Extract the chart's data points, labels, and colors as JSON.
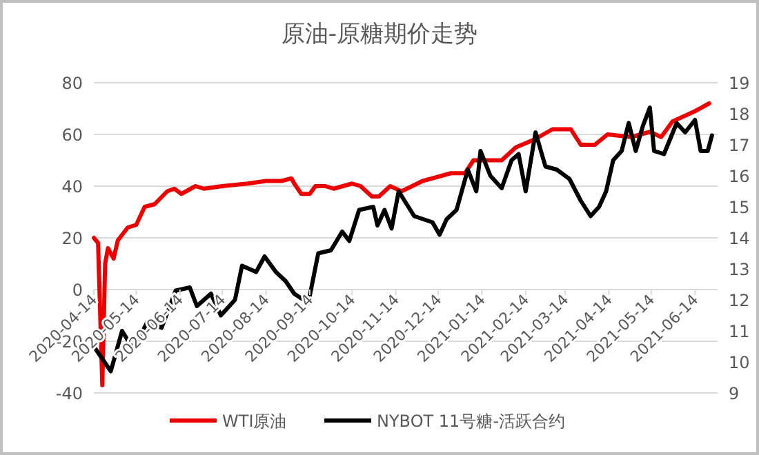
{
  "chart_data": {
    "type": "line",
    "title": "原油-原糖期价走势",
    "x": [
      "2020-04-14",
      "2020-04-17",
      "2020-04-20",
      "2020-04-22",
      "2020-04-24",
      "2020-04-28",
      "2020-05-01",
      "2020-05-08",
      "2020-05-14",
      "2020-05-20",
      "2020-05-27",
      "2020-06-05",
      "2020-06-10",
      "2020-06-15",
      "2020-06-25",
      "2020-07-01",
      "2020-07-14",
      "2020-08-01",
      "2020-08-14",
      "2020-08-25",
      "2020-09-01",
      "2020-09-03",
      "2020-09-08",
      "2020-09-14",
      "2020-09-18",
      "2020-09-25",
      "2020-10-01",
      "2020-10-14",
      "2020-10-20",
      "2020-10-28",
      "2020-11-02",
      "2020-11-10",
      "2020-11-18",
      "2020-12-03",
      "2020-12-23",
      "2021-01-02",
      "2021-01-08",
      "2021-01-28",
      "2021-02-07",
      "2021-02-20",
      "2021-03-05",
      "2021-03-18",
      "2021-03-25",
      "2021-04-04",
      "2021-04-13",
      "2021-04-30",
      "2021-05-13",
      "2021-05-21",
      "2021-05-29",
      "2021-06-14",
      "2021-06-24"
    ],
    "series": [
      {
        "name": "WTI原油",
        "color": "#ee0000",
        "values": [
          20,
          18,
          -37,
          10,
          16,
          12,
          19,
          24,
          25,
          32,
          33,
          38,
          39,
          37,
          40,
          39,
          40,
          41,
          42,
          42,
          43,
          41,
          37,
          37,
          40,
          40,
          39,
          41,
          40,
          36,
          36,
          40,
          38,
          42,
          45,
          45,
          50,
          50,
          55,
          58,
          62,
          62,
          56,
          56,
          60,
          59,
          61,
          59,
          65,
          69,
          72
        ]
      },
      {
        "name": "NYBOT 11号糖-活跃合约",
        "color": "#000000",
        "axis": "y2",
        "x": [
          "2020-04-14",
          "2020-04-26",
          "2020-05-04",
          "2020-05-12",
          "2020-05-22",
          "2020-06-01",
          "2020-06-11",
          "2020-06-21",
          "2020-06-26",
          "2020-07-06",
          "2020-07-13",
          "2020-07-23",
          "2020-07-28",
          "2020-08-07",
          "2020-08-13",
          "2020-08-21",
          "2020-08-28",
          "2020-09-03",
          "2020-09-13",
          "2020-09-20",
          "2020-09-29",
          "2020-10-07",
          "2020-10-12",
          "2020-10-19",
          "2020-10-29",
          "2020-11-01",
          "2020-11-06",
          "2020-11-11",
          "2020-11-16",
          "2020-11-27",
          "2020-12-10",
          "2020-12-15",
          "2020-12-20",
          "2020-12-27",
          "2021-01-04",
          "2021-01-10",
          "2021-01-13",
          "2021-01-20",
          "2021-01-28",
          "2021-02-04",
          "2021-02-09",
          "2021-02-14",
          "2021-02-21",
          "2021-02-28",
          "2021-03-08",
          "2021-03-17",
          "2021-03-25",
          "2021-04-01",
          "2021-04-07",
          "2021-04-12",
          "2021-04-17",
          "2021-04-23",
          "2021-04-28",
          "2021-05-03",
          "2021-05-08",
          "2021-05-13",
          "2021-05-16",
          "2021-05-23",
          "2021-06-01",
          "2021-06-07",
          "2021-06-14",
          "2021-06-18",
          "2021-06-23",
          "2021-06-26"
        ],
        "values": [
          10.5,
          9.7,
          11.0,
          10.4,
          11.3,
          11.1,
          12.3,
          12.4,
          11.8,
          12.2,
          11.5,
          12.0,
          13.1,
          12.9,
          13.4,
          12.9,
          12.6,
          12.2,
          11.9,
          13.5,
          13.6,
          14.2,
          13.9,
          14.9,
          15.0,
          14.4,
          14.9,
          14.3,
          15.5,
          14.7,
          14.5,
          14.1,
          14.6,
          14.9,
          16.2,
          15.5,
          16.8,
          16.0,
          15.6,
          16.5,
          16.7,
          15.5,
          17.4,
          16.3,
          16.2,
          15.9,
          15.2,
          14.7,
          15.0,
          15.5,
          16.5,
          16.8,
          17.7,
          16.8,
          17.6,
          18.2,
          16.8,
          16.7,
          17.7,
          17.4,
          17.8,
          16.8,
          16.8,
          17.3
        ]
      }
    ],
    "xlim": [
      "2020-04-14",
      "2021-06-30"
    ],
    "xticks": [
      "2020-04-14",
      "2020-05-14",
      "2020-06-14",
      "2020-07-14",
      "2020-08-14",
      "2020-09-14",
      "2020-10-14",
      "2020-11-14",
      "2020-12-14",
      "2021-01-14",
      "2021-02-14",
      "2021-03-14",
      "2021-04-14",
      "2021-05-14",
      "2021-06-14"
    ],
    "ylim": [
      -40,
      80
    ],
    "yticks": [
      -40,
      -20,
      0,
      20,
      40,
      60,
      80
    ],
    "y2lim": [
      9,
      19
    ],
    "y2ticks": [
      9,
      10,
      11,
      12,
      13,
      14,
      15,
      16,
      17,
      18,
      19
    ],
    "grid": "y",
    "legend": "bottom"
  }
}
